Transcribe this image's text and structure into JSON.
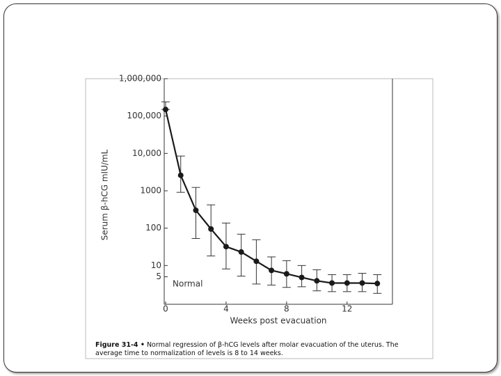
{
  "chart_data": {
    "type": "line",
    "x_label": "Weeks post evacuation",
    "y_label": "Serum β-hCG mIU/mL",
    "annotation": "Normal",
    "caption_label": "Figure 31-4 •",
    "caption_lines": [
      "Normal regression of β-hCG levels after molar evacuation of the uterus. The",
      "average time to normalization of levels is 8 to 14 weeks."
    ],
    "x": [
      0,
      1,
      2,
      3,
      4,
      5,
      6,
      7,
      8,
      9,
      10,
      11,
      12,
      13,
      14
    ],
    "series": [
      {
        "color": "#1a1a1a",
        "values": [
          150000,
          2600,
          300,
          95,
          32,
          23,
          13,
          7.4,
          6,
          4.8,
          3.9,
          3.4,
          3.4,
          3.4,
          3.3
        ],
        "upper": [
          240000,
          8500,
          1230,
          420,
          137,
          69,
          49,
          17,
          13.5,
          10,
          7.7,
          5.7,
          5.7,
          6.2,
          5.7
        ],
        "lower": [
          150000,
          910,
          53,
          18,
          8.1,
          5.2,
          3.2,
          3.0,
          2.6,
          2.7,
          2.1,
          2.0,
          2.0,
          2.0,
          1.8
        ]
      }
    ],
    "xlim": [
      0,
      15
    ],
    "xticks": [
      0,
      4,
      8,
      12
    ],
    "ylim": [
      1,
      1000000
    ],
    "yticks": [
      {
        "value": 1000000,
        "label": "1,000,000"
      },
      {
        "value": 100000,
        "label": "100,000"
      },
      {
        "value": 10000,
        "label": "10,000"
      },
      1000,
      100,
      10,
      5
    ],
    "log_y": true,
    "grid": false
  }
}
